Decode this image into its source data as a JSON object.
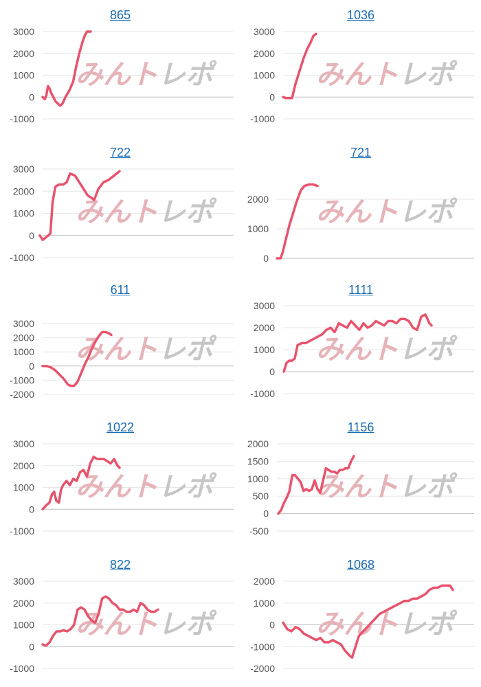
{
  "colors": {
    "line": "#e8536c",
    "grid": "#e6e6e6",
    "zero_axis": "#bdbdbd",
    "title": "#1a6bb5",
    "tick": "#555555"
  },
  "watermark": {
    "part1": "みんト",
    "part2": "レポ"
  },
  "chart_data": [
    {
      "type": "line",
      "title": "865",
      "yticks": [
        3000,
        2000,
        1000,
        0,
        -1000
      ],
      "ylim": [
        -1000,
        3000
      ],
      "grid": true,
      "x": [
        0,
        3,
        5,
        7,
        9,
        11,
        14,
        17,
        20,
        23,
        26,
        30,
        35,
        40,
        44,
        48,
        52,
        55,
        58,
        61,
        63
      ],
      "values": [
        0,
        -100,
        100,
        500,
        400,
        200,
        0,
        -200,
        -300,
        -400,
        -300,
        0,
        300,
        700,
        1400,
        2000,
        2500,
        2800,
        3000,
        3000,
        3000
      ]
    },
    {
      "type": "line",
      "title": "1036",
      "yticks": [
        3000,
        2000,
        1000,
        0,
        -1000
      ],
      "ylim": [
        -1000,
        3000
      ],
      "grid": true,
      "x": [
        0,
        4,
        8,
        13,
        18,
        22,
        26,
        30,
        35,
        40,
        44,
        48
      ],
      "values": [
        0,
        -50,
        -50,
        -50,
        600,
        1000,
        1400,
        1800,
        2200,
        2500,
        2800,
        2900
      ]
    },
    {
      "type": "line",
      "title": "722",
      "yticks": [
        3000,
        2000,
        1000,
        0,
        -1000
      ],
      "ylim": [
        -1000,
        3000
      ],
      "grid": true,
      "x": [
        0,
        4,
        8,
        12,
        15,
        18,
        22,
        27,
        33,
        38,
        43,
        50,
        56,
        62,
        68,
        73,
        77,
        83,
        90,
        97,
        105,
        113
      ],
      "values": [
        0,
        -200,
        -100,
        0,
        100,
        1500,
        2200,
        2300,
        2300,
        2400,
        2800,
        2700,
        2400,
        2100,
        1800,
        1700,
        1600,
        2100,
        2400,
        2500,
        2700,
        2900
      ]
    },
    {
      "type": "line",
      "title": "721",
      "yticks": [
        2000,
        1000,
        0
      ],
      "ylim": [
        0,
        3000
      ],
      "grid": true,
      "x": [
        0,
        5,
        8,
        12,
        17,
        22,
        27,
        33,
        38,
        44,
        50,
        56
      ],
      "values": [
        0,
        0,
        200,
        600,
        1100,
        1500,
        1900,
        2300,
        2450,
        2500,
        2500,
        2450
      ]
    },
    {
      "type": "line",
      "title": "611",
      "yticks": [
        3000,
        2000,
        1000,
        0,
        -1000,
        -2000
      ],
      "ylim": [
        -2000,
        3000
      ],
      "grid": true,
      "x": [
        0,
        6,
        12,
        18,
        24,
        30,
        36,
        40,
        45,
        50,
        55,
        60,
        65,
        70,
        75,
        80,
        85,
        90,
        95,
        98
      ],
      "values": [
        0,
        0,
        -100,
        -300,
        -600,
        -900,
        -1300,
        -1400,
        -1400,
        -1100,
        -500,
        100,
        600,
        1200,
        1700,
        2100,
        2400,
        2400,
        2300,
        2200
      ]
    },
    {
      "type": "line",
      "title": "1111",
      "yticks": [
        3000,
        2000,
        1000,
        0,
        -1000
      ],
      "ylim": [
        -1000,
        3000
      ],
      "grid": true,
      "x": [
        0,
        4,
        8,
        12,
        16,
        20,
        26,
        32,
        38,
        44,
        50,
        56,
        62,
        68,
        74,
        80,
        86,
        92,
        98,
        104,
        110,
        116,
        122,
        128,
        134,
        140,
        146,
        152,
        158,
        164,
        170,
        176,
        182,
        188,
        194,
        200,
        206,
        212,
        215
      ],
      "values": [
        0,
        400,
        500,
        500,
        600,
        1200,
        1300,
        1300,
        1400,
        1500,
        1600,
        1700,
        1900,
        2000,
        1800,
        2200,
        2100,
        2000,
        2300,
        2100,
        1900,
        2200,
        2000,
        2100,
        2300,
        2200,
        2100,
        2300,
        2300,
        2200,
        2400,
        2400,
        2300,
        2000,
        1900,
        2500,
        2600,
        2200,
        2100
      ]
    },
    {
      "type": "line",
      "title": "1022",
      "yticks": [
        3000,
        2000,
        1000,
        0,
        -1000
      ],
      "ylim": [
        -1000,
        3000
      ],
      "grid": true,
      "x": [
        0,
        3,
        6,
        10,
        14,
        17,
        20,
        24,
        27,
        30,
        35,
        40,
        45,
        50,
        55,
        60,
        65,
        70,
        75,
        80,
        85,
        90,
        95,
        100,
        105,
        110,
        113
      ],
      "values": [
        0,
        100,
        200,
        300,
        700,
        800,
        400,
        300,
        900,
        1100,
        1300,
        1100,
        1400,
        1300,
        1700,
        1800,
        1500,
        2100,
        2400,
        2300,
        2300,
        2300,
        2200,
        2100,
        2300,
        2000,
        1900
      ]
    },
    {
      "type": "line",
      "title": "1156",
      "yticks": [
        2000,
        1500,
        1000,
        500,
        0,
        -500
      ],
      "ylim": [
        -500,
        2000
      ],
      "grid": true,
      "x": [
        0,
        4,
        8,
        12,
        16,
        20,
        24,
        28,
        32,
        36,
        40,
        44,
        48,
        52,
        56,
        60,
        64,
        68,
        72,
        76,
        80,
        84,
        88,
        92,
        96,
        100,
        104,
        108
      ],
      "values": [
        0,
        100,
        300,
        450,
        650,
        1100,
        1100,
        1000,
        900,
        650,
        700,
        650,
        700,
        950,
        700,
        600,
        950,
        1300,
        1250,
        1200,
        1200,
        1150,
        1250,
        1250,
        1300,
        1300,
        1500,
        1650
      ]
    },
    {
      "type": "line",
      "title": "822",
      "yticks": [
        3000,
        2000,
        1000,
        0,
        -1000
      ],
      "ylim": [
        -1000,
        3000
      ],
      "grid": true,
      "x": [
        0,
        5,
        10,
        15,
        20,
        25,
        30,
        35,
        40,
        45,
        50,
        55,
        60,
        65,
        70,
        75,
        80,
        85,
        90,
        95,
        100,
        105,
        110,
        115,
        120,
        125,
        130,
        135,
        140,
        145,
        150,
        155,
        160,
        165
      ],
      "values": [
        100,
        50,
        200,
        500,
        700,
        700,
        750,
        700,
        800,
        1000,
        1700,
        1800,
        1700,
        1400,
        1200,
        1100,
        1500,
        2200,
        2300,
        2200,
        2000,
        1900,
        1700,
        1700,
        1600,
        1600,
        1700,
        1600,
        2000,
        1900,
        1700,
        1600,
        1600,
        1700
      ]
    },
    {
      "type": "line",
      "title": "1068",
      "yticks": [
        2000,
        1000,
        0,
        -1000,
        -2000
      ],
      "ylim": [
        -2000,
        2000
      ],
      "grid": true,
      "x": [
        0,
        6,
        12,
        18,
        24,
        30,
        36,
        42,
        48,
        54,
        60,
        66,
        72,
        78,
        84,
        90,
        96,
        100,
        104,
        110,
        116,
        122,
        128,
        134,
        140,
        146,
        152,
        158,
        164,
        170,
        176,
        182,
        188,
        194,
        200,
        206,
        212,
        218,
        224,
        230,
        236,
        242,
        246
      ],
      "values": [
        100,
        -200,
        -300,
        -100,
        -200,
        -400,
        -500,
        -600,
        -700,
        -600,
        -800,
        -800,
        -700,
        -800,
        -900,
        -1200,
        -1400,
        -1500,
        -1100,
        -500,
        -300,
        -100,
        100,
        300,
        500,
        600,
        700,
        800,
        900,
        1000,
        1100,
        1100,
        1200,
        1200,
        1300,
        1400,
        1600,
        1700,
        1700,
        1800,
        1800,
        1800,
        1600
      ]
    }
  ]
}
